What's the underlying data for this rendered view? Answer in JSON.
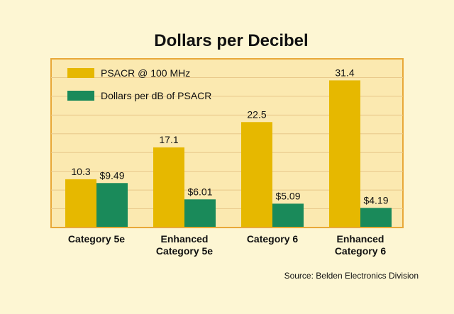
{
  "chart_data": {
    "type": "bar",
    "title": "Dollars per Decibel",
    "categories": [
      "Category 5e",
      "Enhanced Category 5e",
      "Category 6",
      "Enhanced Category 6"
    ],
    "category_lines": [
      [
        "Category 5e"
      ],
      [
        "Enhanced",
        "Category 5e"
      ],
      [
        "Category 6"
      ],
      [
        "Enhanced",
        "Category 6"
      ]
    ],
    "series": [
      {
        "name": "PSACR @ 100 MHz",
        "color": "#e6b800",
        "values": [
          10.3,
          17.1,
          22.5,
          31.4
        ],
        "labels": [
          "10.3",
          "17.1",
          "22.5",
          "31.4"
        ]
      },
      {
        "name": "Dollars per dB of PSACR",
        "color": "#1a8a5a",
        "values": [
          9.49,
          6.01,
          5.09,
          4.19
        ],
        "labels": [
          "$9.49",
          "$6.01",
          "$5.09",
          "$4.19"
        ]
      }
    ],
    "ylim": [
      0,
      36
    ],
    "grid": true,
    "legend_position": "top-left",
    "source": "Source: Belden Electronics Division",
    "colors": {
      "background": "#fdf6d3",
      "plot_background": "#fbe9b0",
      "frame": "#e8a838",
      "grid": "#e8c88a"
    }
  }
}
